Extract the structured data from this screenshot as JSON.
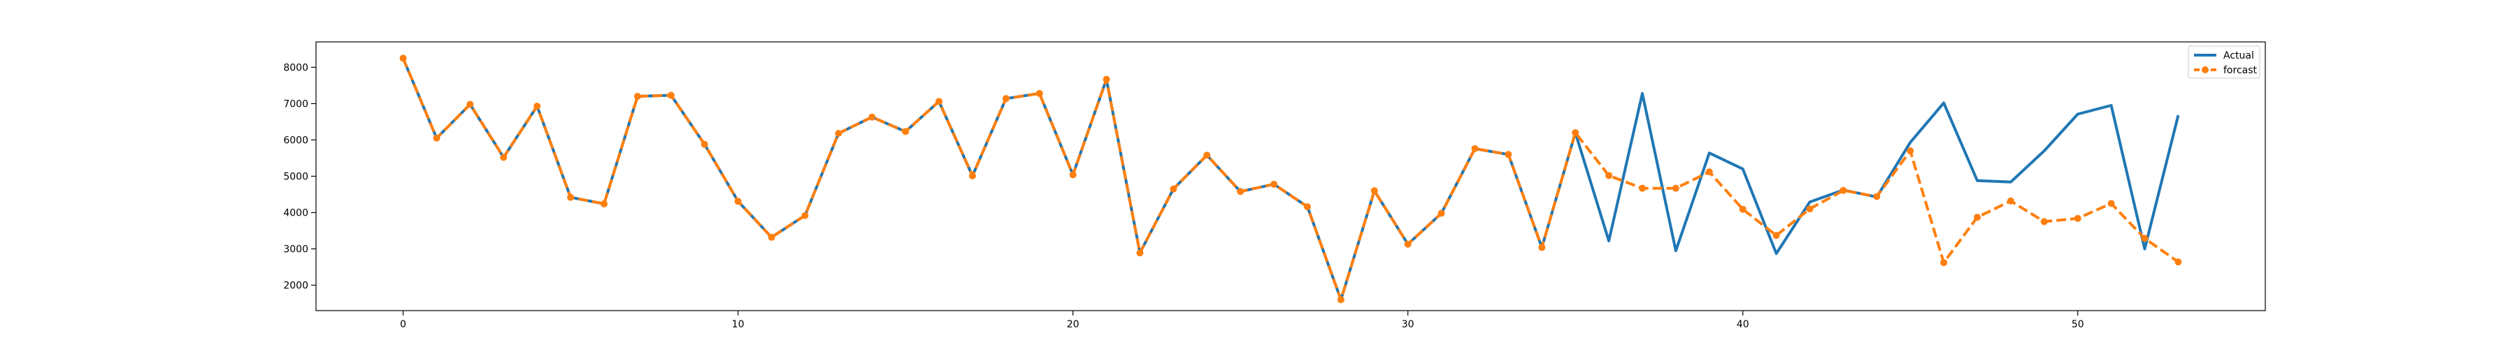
{
  "chart_data": {
    "type": "line",
    "title": "",
    "xlabel": "",
    "ylabel": "",
    "xlim": [
      -2.6,
      55.6
    ],
    "ylim": [
      1300,
      8700
    ],
    "x_ticks": [
      0,
      10,
      20,
      30,
      40,
      50
    ],
    "y_ticks": [
      2000,
      3000,
      4000,
      5000,
      6000,
      7000,
      8000
    ],
    "grid": false,
    "legend_position": "top-right",
    "series": [
      {
        "name": "Actual",
        "color": "#1f77b4",
        "line_style": "solid",
        "marker": "none",
        "x": [
          0,
          1,
          2,
          3,
          4,
          5,
          6,
          7,
          8,
          9,
          10,
          11,
          12,
          13,
          14,
          15,
          16,
          17,
          18,
          19,
          20,
          21,
          22,
          23,
          24,
          25,
          26,
          27,
          28,
          29,
          30,
          31,
          32,
          33,
          34,
          35,
          36,
          37,
          38,
          39,
          40,
          41,
          42,
          43,
          44,
          45,
          46,
          47,
          48,
          49,
          50,
          51,
          52,
          53
        ],
        "values": [
          8250,
          6050,
          6980,
          5520,
          6930,
          4420,
          4240,
          7200,
          7230,
          5880,
          4310,
          3320,
          3920,
          6180,
          6630,
          6230,
          7060,
          5010,
          7140,
          7280,
          5040,
          7670,
          2890,
          4650,
          5580,
          4580,
          4780,
          4160,
          1600,
          4600,
          3130,
          3980,
          5760,
          5600,
          3040,
          6200,
          3220,
          7280,
          2950,
          5640,
          5200,
          2870,
          4290,
          4620,
          4430,
          5930,
          7020,
          4880,
          4840,
          5700,
          6710,
          6950,
          3000,
          6680
        ]
      },
      {
        "name": "forcast",
        "color": "#ff7f0e",
        "line_style": "dashed",
        "marker": "circle",
        "x": [
          0,
          1,
          2,
          3,
          4,
          5,
          6,
          7,
          8,
          9,
          10,
          11,
          12,
          13,
          14,
          15,
          16,
          17,
          18,
          19,
          20,
          21,
          22,
          23,
          24,
          25,
          26,
          27,
          28,
          29,
          30,
          31,
          32,
          33,
          34,
          35,
          36,
          37,
          38,
          39,
          40,
          41,
          42,
          43,
          44,
          45,
          46,
          47,
          48,
          49,
          50,
          51,
          52,
          53
        ],
        "values": [
          8250,
          6050,
          6980,
          5520,
          6930,
          4420,
          4240,
          7200,
          7230,
          5880,
          4310,
          3320,
          3920,
          6180,
          6630,
          6230,
          7060,
          5010,
          7140,
          7280,
          5040,
          7670,
          2890,
          4650,
          5580,
          4580,
          4780,
          4160,
          1600,
          4600,
          3130,
          3980,
          5760,
          5600,
          3040,
          6200,
          5020,
          4670,
          4670,
          5120,
          4090,
          3370,
          4100,
          4610,
          4440,
          5700,
          2620,
          3870,
          4320,
          3750,
          3840,
          4250,
          3290,
          2640
        ]
      }
    ]
  }
}
